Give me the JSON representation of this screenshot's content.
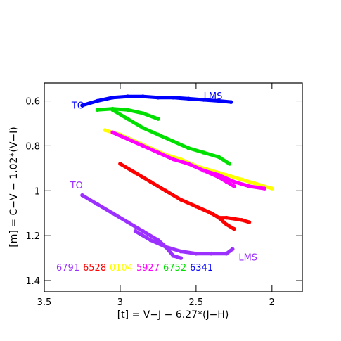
{
  "chart_data": {
    "type": "scatter",
    "xlabel": "[t] = V−J − 6.27*(J−H)",
    "ylabel": "[m] = C−V − 1.02*(V−I)",
    "xlim": [
      3.5,
      1.8
    ],
    "ylim": [
      1.45,
      0.52
    ],
    "x_ticks": [
      3.5,
      3,
      2.5,
      2
    ],
    "x_tick_labels": [
      "3.5",
      "3",
      "2.5",
      "2"
    ],
    "y_ticks": [
      0.6,
      0.8,
      1.0,
      1.2,
      1.4
    ],
    "y_tick_labels": [
      "0.6",
      "0.8",
      "1",
      "1.2",
      "1.4"
    ],
    "grid": false,
    "legend_placement": "bottom",
    "series": [
      {
        "name": "6791",
        "color": "#9b30ff",
        "points": [
          [
            3.25,
            1.02
          ],
          [
            3.15,
            1.06
          ],
          [
            3.05,
            1.1
          ],
          [
            2.95,
            1.14
          ],
          [
            2.85,
            1.18
          ],
          [
            2.75,
            1.22
          ],
          [
            2.7,
            1.25
          ],
          [
            2.65,
            1.29
          ],
          [
            2.6,
            1.3
          ]
        ]
      },
      {
        "name": "6791",
        "color": "#9b30ff",
        "points": [
          [
            2.9,
            1.18
          ],
          [
            2.8,
            1.22
          ],
          [
            2.7,
            1.25
          ],
          [
            2.6,
            1.27
          ],
          [
            2.5,
            1.28
          ],
          [
            2.4,
            1.28
          ],
          [
            2.3,
            1.28
          ],
          [
            2.26,
            1.26
          ]
        ]
      },
      {
        "name": "6528",
        "color": "#ff0000",
        "points": [
          [
            3.0,
            0.88
          ],
          [
            2.9,
            0.92
          ],
          [
            2.8,
            0.96
          ],
          [
            2.7,
            1.0
          ],
          [
            2.6,
            1.04
          ],
          [
            2.5,
            1.07
          ],
          [
            2.4,
            1.1
          ],
          [
            2.35,
            1.12
          ],
          [
            2.3,
            1.15
          ],
          [
            2.25,
            1.17
          ]
        ]
      },
      {
        "name": "6528",
        "color": "#ff0000",
        "points": [
          [
            2.4,
            1.1
          ],
          [
            2.35,
            1.12
          ],
          [
            2.3,
            1.12
          ],
          [
            2.2,
            1.13
          ],
          [
            2.15,
            1.14
          ]
        ]
      },
      {
        "name": "0104",
        "color": "#ffff00",
        "points": [
          [
            3.1,
            0.73
          ],
          [
            3.0,
            0.75
          ],
          [
            2.9,
            0.78
          ],
          [
            2.8,
            0.81
          ],
          [
            2.7,
            0.84
          ],
          [
            2.6,
            0.86
          ],
          [
            2.5,
            0.89
          ],
          [
            2.4,
            0.91
          ],
          [
            2.3,
            0.93
          ],
          [
            2.2,
            0.95
          ],
          [
            2.1,
            0.97
          ],
          [
            2.0,
            0.99
          ]
        ]
      },
      {
        "name": "5927",
        "color": "#ff00ff",
        "points": [
          [
            3.05,
            0.74
          ],
          [
            2.95,
            0.77
          ],
          [
            2.85,
            0.8
          ],
          [
            2.75,
            0.83
          ],
          [
            2.65,
            0.86
          ],
          [
            2.55,
            0.88
          ],
          [
            2.45,
            0.91
          ],
          [
            2.35,
            0.93
          ],
          [
            2.25,
            0.96
          ],
          [
            2.15,
            0.98
          ],
          [
            2.05,
            0.99
          ]
        ]
      },
      {
        "name": "5927",
        "color": "#ff00ff",
        "points": [
          [
            2.45,
            0.91
          ],
          [
            2.35,
            0.94
          ],
          [
            2.3,
            0.96
          ],
          [
            2.25,
            0.98
          ]
        ]
      },
      {
        "name": "6752",
        "color": "#00e000",
        "points": [
          [
            3.15,
            0.64
          ],
          [
            3.05,
            0.635
          ],
          [
            2.95,
            0.64
          ],
          [
            2.85,
            0.655
          ],
          [
            2.75,
            0.68
          ]
        ]
      },
      {
        "name": "6752",
        "color": "#00e000",
        "points": [
          [
            3.05,
            0.64
          ],
          [
            2.95,
            0.68
          ],
          [
            2.85,
            0.72
          ],
          [
            2.75,
            0.75
          ],
          [
            2.65,
            0.78
          ],
          [
            2.55,
            0.81
          ],
          [
            2.45,
            0.83
          ],
          [
            2.35,
            0.85
          ],
          [
            2.28,
            0.88
          ]
        ]
      },
      {
        "name": "6341",
        "color": "#0000ff",
        "points": [
          [
            3.25,
            0.62
          ],
          [
            3.15,
            0.6
          ],
          [
            3.05,
            0.585
          ],
          [
            2.95,
            0.58
          ],
          [
            2.85,
            0.58
          ],
          [
            2.75,
            0.585
          ],
          [
            2.65,
            0.585
          ],
          [
            2.55,
            0.59
          ],
          [
            2.45,
            0.595
          ],
          [
            2.35,
            0.6
          ],
          [
            2.27,
            0.605
          ]
        ]
      }
    ],
    "legend": [
      {
        "label": "6791",
        "color": "#9b30ff"
      },
      {
        "label": "6528",
        "color": "#ff0000"
      },
      {
        "label": "0104",
        "color": "#ffff00"
      },
      {
        "label": "5927",
        "color": "#ff00ff"
      },
      {
        "label": "6752",
        "color": "#00e000"
      },
      {
        "label": "6341",
        "color": "#0000ff"
      }
    ],
    "annotations": [
      {
        "text": "TO",
        "color": "#0000ff",
        "x": 3.32,
        "y": 0.635
      },
      {
        "text": "LMS",
        "color": "#0000ff",
        "x": 2.45,
        "y": 0.592
      },
      {
        "text": "TO",
        "color": "#9b30ff",
        "x": 3.33,
        "y": 0.99
      },
      {
        "text": "LMS",
        "color": "#9b30ff",
        "x": 2.22,
        "y": 1.31
      }
    ]
  }
}
